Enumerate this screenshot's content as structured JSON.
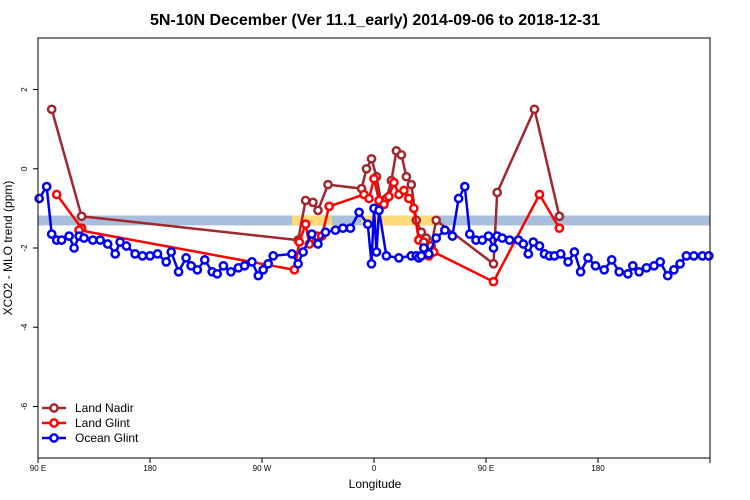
{
  "chart_data": {
    "type": "line",
    "title": "5N-10N December (Ver 11.1_early)   2014-09-06 to 2018-12-31",
    "xlabel": "Longitude",
    "ylabel": "XCO2 - MLO trend (ppm)",
    "xlim": [
      -90,
      180
    ],
    "ylim": [
      -7.3,
      3.3
    ],
    "x_ticks": [
      {
        "value": -90,
        "label": "90 E"
      },
      {
        "value": -45,
        "label": "180"
      },
      {
        "value": 0,
        "label": "90 W"
      },
      {
        "value": 45,
        "label": "0"
      },
      {
        "value": 90,
        "label": "90 E"
      },
      {
        "value": 135,
        "label": "180"
      }
    ],
    "y_ticks": [
      {
        "value": 2,
        "label": "2"
      },
      {
        "value": 0,
        "label": "0"
      },
      {
        "value": -2,
        "label": "-2"
      },
      {
        "value": -4,
        "label": "-4"
      },
      {
        "value": -6,
        "label": "-6"
      }
    ],
    "grid": false,
    "legend_position": "bottom-left",
    "band": {
      "y_low": -1.43,
      "y_high": -1.18,
      "color": "#a7bfdc",
      "highlight_color": "#ffd97a"
    },
    "series": [
      {
        "name": "Land Nadir",
        "color": "#a0282d",
        "x": [
          -84.5,
          -72.5,
          14.5,
          17.5,
          20.5,
          22.5,
          26.5,
          40,
          42,
          44,
          46,
          48,
          50,
          52,
          54,
          56,
          58,
          60,
          62,
          64,
          66,
          68,
          70,
          93,
          94.5,
          109.5,
          119.5
        ],
        "values": [
          1.5,
          -1.2,
          -1.8,
          -0.8,
          -0.85,
          -1.05,
          -0.4,
          -0.5,
          0,
          0.25,
          -0.2,
          -0.9,
          -0.75,
          -0.3,
          0.45,
          0.35,
          -0.2,
          -0.4,
          -1.3,
          -1.6,
          -1.75,
          -1.95,
          -1.3,
          -2.4,
          -0.6,
          1.5,
          -1.2
        ]
      },
      {
        "name": "Land Glint",
        "color": "#ff0000",
        "x": [
          -82.5,
          -72.5,
          -73.5,
          13,
          15,
          17.5,
          19,
          22,
          24,
          27,
          41,
          43,
          45,
          47,
          49,
          51,
          53,
          55,
          57,
          59,
          61,
          63,
          65,
          67,
          69,
          93,
          111.5,
          119.5
        ],
        "values": [
          -0.65,
          -1.5,
          -1.55,
          -2.55,
          -1.85,
          -1.4,
          -1.9,
          -1.7,
          -1.7,
          -0.95,
          -0.65,
          -0.75,
          -0.25,
          -0.8,
          -0.9,
          -0.7,
          -0.35,
          -0.65,
          -0.55,
          -0.75,
          -1.0,
          -1.8,
          -1.85,
          -2.2,
          -2.1,
          -2.85,
          -0.65,
          -1.5
        ]
      },
      {
        "name": "Ocean Glint",
        "color": "#0000ee",
        "x": [
          -89.5,
          -86.5,
          -84.5,
          -82.5,
          -80.5,
          -77.5,
          -75.5,
          -73.5,
          -71.5,
          -68,
          -65,
          -62,
          -59,
          -57,
          -54.5,
          -51,
          -48,
          -45,
          -42,
          -38.5,
          -36.5,
          -33.5,
          -30.5,
          -28.5,
          -26,
          -23,
          -20,
          -18,
          -15.5,
          -12.5,
          -9.5,
          -7,
          -4,
          -1.5,
          0.5,
          2.5,
          4.5,
          12,
          14.5,
          16.5,
          20,
          22.5,
          25.5,
          29.5,
          32.5,
          35.5,
          39,
          42.5,
          44,
          45,
          46,
          47,
          50,
          55,
          60,
          62,
          63,
          64,
          65,
          67,
          70,
          73.5,
          76.5,
          79,
          81.5,
          83.5,
          86,
          88.5,
          91,
          93,
          94.5,
          96.5,
          99.5,
          103,
          105,
          107,
          109,
          111.5,
          113.5,
          115.5,
          117.5,
          120,
          123,
          125.5,
          128,
          131,
          134,
          137.5,
          140.5,
          143.5,
          147,
          149,
          151.5,
          154.5,
          157.5,
          160,
          163,
          165.5,
          168,
          170.5,
          173.5,
          177,
          179.5
        ],
        "values": [
          -0.75,
          -0.45,
          -1.65,
          -1.8,
          -1.8,
          -1.7,
          -2.0,
          -1.7,
          -1.75,
          -1.8,
          -1.8,
          -1.9,
          -2.15,
          -1.85,
          -1.95,
          -2.15,
          -2.2,
          -2.2,
          -2.15,
          -2.35,
          -2.1,
          -2.6,
          -2.25,
          -2.45,
          -2.55,
          -2.3,
          -2.6,
          -2.65,
          -2.45,
          -2.6,
          -2.5,
          -2.45,
          -2.35,
          -2.7,
          -2.55,
          -2.4,
          -2.2,
          -2.15,
          -2.4,
          -2.1,
          -1.65,
          -1.9,
          -1.6,
          -1.55,
          -1.5,
          -1.5,
          -1.1,
          -1.4,
          -2.4,
          -1.0,
          -2.1,
          -1.05,
          -2.2,
          -2.25,
          -2.2,
          -2.2,
          -2.25,
          -2.2,
          -2.0,
          -2.15,
          -1.75,
          -1.55,
          -1.7,
          -0.75,
          -0.45,
          -1.65,
          -1.8,
          -1.8,
          -1.7,
          -2.0,
          -1.7,
          -1.75,
          -1.8,
          -1.8,
          -1.9,
          -2.15,
          -1.85,
          -1.95,
          -2.15,
          -2.2,
          -2.2,
          -2.15,
          -2.35,
          -2.1,
          -2.6,
          -2.25,
          -2.45,
          -2.55,
          -2.3,
          -2.6,
          -2.65,
          -2.45,
          -2.6,
          -2.5,
          -2.45,
          -2.35,
          -2.7,
          -2.55,
          -2.4,
          -2.2,
          -2.2,
          -2.2,
          -2.2
        ]
      }
    ]
  }
}
